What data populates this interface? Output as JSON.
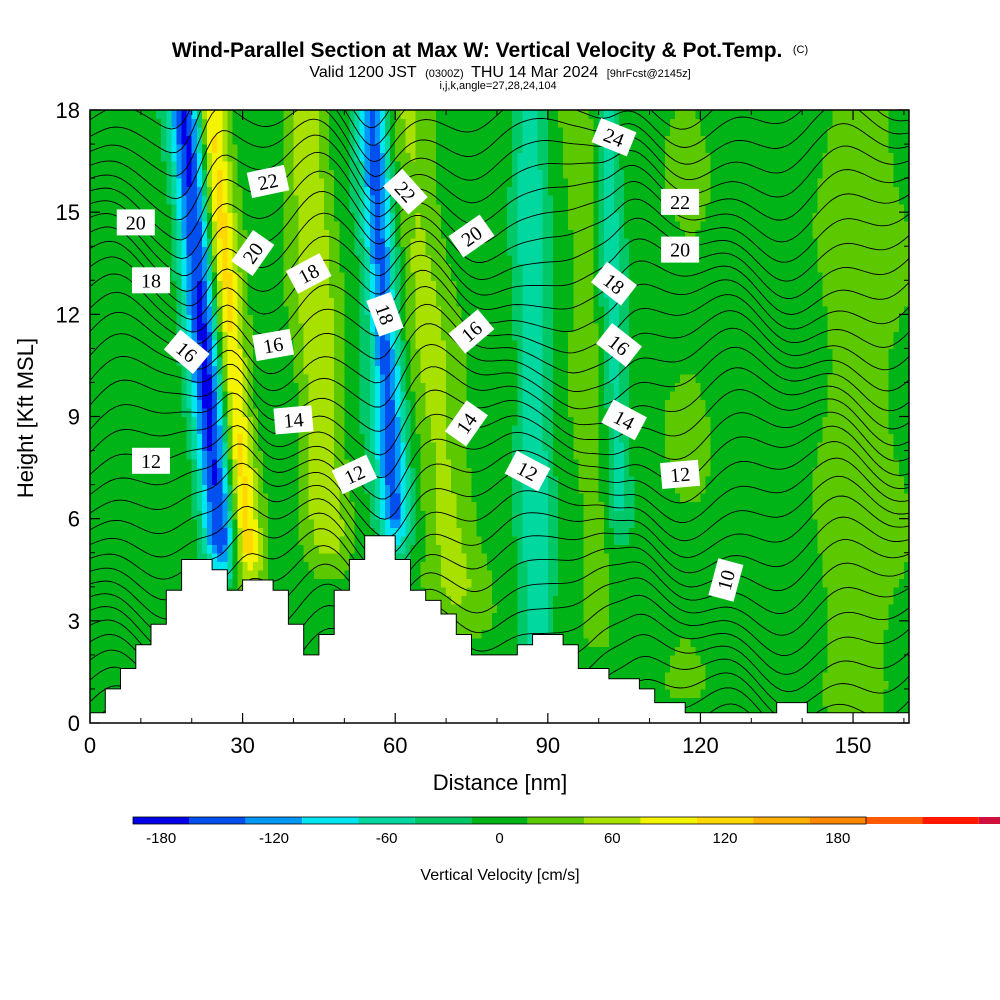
{
  "chart_data": {
    "type": "heatmap",
    "title": "Wind-Parallel Section at Max W: Vertical Velocity & Pot.Temp.",
    "title_tag": "(C)",
    "subtitle": {
      "valid": "Valid 1200 JST",
      "utc": "(0300Z)",
      "date": "THU 14 Mar 2024",
      "forecast": "[9hrFcst@2145z]",
      "grid": "i,j,k,angle=27,28,24,104"
    },
    "xlabel": "Distance [nm]",
    "ylabel": "Height [Kft MSL]",
    "xlim": [
      0,
      161
    ],
    "ylim": [
      0,
      18
    ],
    "x_ticks": [
      0,
      30,
      60,
      90,
      120,
      150
    ],
    "y_ticks": [
      0,
      3,
      6,
      9,
      12,
      15,
      18
    ],
    "colorbar": {
      "label": "Vertical Velocity [cm/s]",
      "tick_labels": [
        "-180",
        "-120",
        "-60",
        "0",
        "60",
        "120",
        "180"
      ],
      "tick_values": [
        -180,
        -120,
        -60,
        0,
        60,
        120,
        180
      ],
      "min": -195,
      "max": 195,
      "step": 30,
      "colors": [
        "#0000e8",
        "#0050f0",
        "#0098f8",
        "#00e6f0",
        "#00d8a0",
        "#00c868",
        "#00b418",
        "#5cc800",
        "#a8e000",
        "#f4f400",
        "#ffd800",
        "#ffb000",
        "#ff8800",
        "#ff5a00",
        "#ff1800",
        "#d0103c",
        "#a01070",
        "#6c1090"
      ]
    },
    "velocity_features": [
      {
        "x": 26,
        "z_base": 4.8,
        "z_top": 18,
        "tilt": -0.55,
        "width": 3.5,
        "w": -185
      },
      {
        "x": 31,
        "z_base": 4.5,
        "z_top": 18,
        "tilt": -0.55,
        "width": 3.0,
        "w": 125
      },
      {
        "x": 47,
        "z_base": 5.0,
        "z_top": 18,
        "tilt": -0.35,
        "width": 4.5,
        "w": 75
      },
      {
        "x": 60,
        "z_base": 5.5,
        "z_top": 18,
        "tilt": -0.35,
        "width": 3.0,
        "w": -140
      },
      {
        "x": 72,
        "z_base": 3.5,
        "z_top": 18,
        "tilt": -0.7,
        "width": 5.0,
        "w": 55
      },
      {
        "x": 88,
        "z_base": 1.5,
        "z_top": 18,
        "tilt": -0.1,
        "width": 3.5,
        "w": -75
      },
      {
        "x": 100,
        "z_base": 3.0,
        "z_top": 18,
        "tilt": -0.25,
        "width": 3.0,
        "w": 30
      },
      {
        "x": 104,
        "z_base": 6.0,
        "z_top": 18,
        "tilt": -0.2,
        "width": 2.5,
        "w": -60
      },
      {
        "x": 118,
        "z_base": 0.5,
        "z_top": 18,
        "tilt": 0.0,
        "width": 8.0,
        "w": 22
      },
      {
        "x": 150,
        "z_base": 0.5,
        "z_top": 18,
        "tilt": 0.05,
        "width": 7.0,
        "w": 28
      }
    ],
    "theta_contours": [
      {
        "x": 12,
        "z": 7.7,
        "label": "12",
        "angle": 0
      },
      {
        "x": 52,
        "z": 7.3,
        "label": "12",
        "angle": -25
      },
      {
        "x": 86,
        "z": 7.4,
        "label": "12",
        "angle": 28
      },
      {
        "x": 116,
        "z": 7.3,
        "label": "12",
        "angle": -5
      },
      {
        "x": 40,
        "z": 8.9,
        "label": "14",
        "angle": -5
      },
      {
        "x": 74,
        "z": 8.8,
        "label": "14",
        "angle": -55
      },
      {
        "x": 105,
        "z": 8.9,
        "label": "14",
        "angle": 28
      },
      {
        "x": 19,
        "z": 10.9,
        "label": "16",
        "angle": 40
      },
      {
        "x": 36,
        "z": 11.1,
        "label": "16",
        "angle": -10
      },
      {
        "x": 75,
        "z": 11.5,
        "label": "16",
        "angle": -40
      },
      {
        "x": 104,
        "z": 11.1,
        "label": "16",
        "angle": 38
      },
      {
        "x": 12,
        "z": 13.0,
        "label": "18",
        "angle": 0
      },
      {
        "x": 43,
        "z": 13.2,
        "label": "18",
        "angle": -28
      },
      {
        "x": 58,
        "z": 12.0,
        "label": "18",
        "angle": 70
      },
      {
        "x": 103,
        "z": 12.9,
        "label": "18",
        "angle": 38
      },
      {
        "x": 9,
        "z": 14.7,
        "label": "20",
        "angle": 0
      },
      {
        "x": 32,
        "z": 13.8,
        "label": "20",
        "angle": -55
      },
      {
        "x": 75,
        "z": 14.3,
        "label": "20",
        "angle": -35
      },
      {
        "x": 116,
        "z": 13.9,
        "label": "20",
        "angle": 0
      },
      {
        "x": 35,
        "z": 15.9,
        "label": "22",
        "angle": -12
      },
      {
        "x": 62,
        "z": 15.6,
        "label": "22",
        "angle": 48
      },
      {
        "x": 116,
        "z": 15.3,
        "label": "22",
        "angle": 0
      },
      {
        "x": 103,
        "z": 17.2,
        "label": "24",
        "angle": 22
      },
      {
        "x": 125,
        "z": 4.2,
        "label": "10",
        "angle": -75
      }
    ],
    "terrain": [
      {
        "x": 0,
        "z": 0.3
      },
      {
        "x": 3,
        "z": 1.0
      },
      {
        "x": 6,
        "z": 1.6
      },
      {
        "x": 9,
        "z": 2.3
      },
      {
        "x": 12,
        "z": 2.9
      },
      {
        "x": 15,
        "z": 3.9
      },
      {
        "x": 18,
        "z": 4.8
      },
      {
        "x": 24,
        "z": 4.5
      },
      {
        "x": 27,
        "z": 3.9
      },
      {
        "x": 30,
        "z": 4.2
      },
      {
        "x": 36,
        "z": 3.9
      },
      {
        "x": 39,
        "z": 2.9
      },
      {
        "x": 42,
        "z": 2.0
      },
      {
        "x": 45,
        "z": 2.6
      },
      {
        "x": 48,
        "z": 3.9
      },
      {
        "x": 51,
        "z": 4.8
      },
      {
        "x": 54,
        "z": 5.5
      },
      {
        "x": 60,
        "z": 4.8
      },
      {
        "x": 63,
        "z": 3.9
      },
      {
        "x": 66,
        "z": 3.6
      },
      {
        "x": 69,
        "z": 3.2
      },
      {
        "x": 72,
        "z": 2.6
      },
      {
        "x": 75,
        "z": 2.0
      },
      {
        "x": 84,
        "z": 2.3
      },
      {
        "x": 87,
        "z": 2.6
      },
      {
        "x": 93,
        "z": 2.3
      },
      {
        "x": 96,
        "z": 1.6
      },
      {
        "x": 102,
        "z": 1.3
      },
      {
        "x": 108,
        "z": 1.0
      },
      {
        "x": 111,
        "z": 0.6
      },
      {
        "x": 117,
        "z": 0.3
      },
      {
        "x": 135,
        "z": 0.6
      },
      {
        "x": 141,
        "z": 0.3
      },
      {
        "x": 161,
        "z": 0.3
      }
    ]
  }
}
